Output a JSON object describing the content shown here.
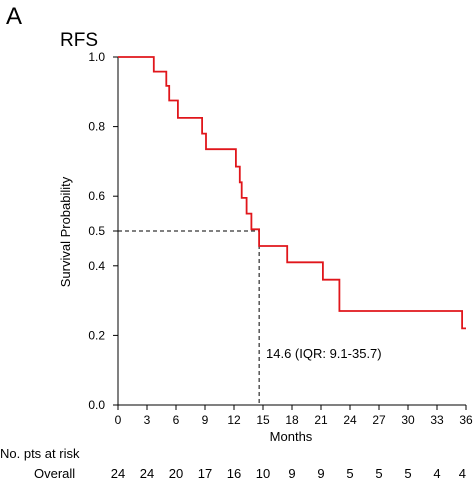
{
  "panel_label": "A",
  "chart_data": {
    "type": "line",
    "title": "RFS",
    "xlabel": "Months",
    "ylabel": "Survival Probability",
    "xlim": [
      0,
      36
    ],
    "ylim": [
      0,
      1
    ],
    "x_ticks": [
      0,
      3,
      6,
      9,
      12,
      15,
      18,
      21,
      24,
      27,
      30,
      33,
      36
    ],
    "y_ticks": [
      0.0,
      0.2,
      0.4,
      0.5,
      0.6,
      0.8,
      1.0
    ],
    "y_tick_labels": [
      "0.0",
      "0.2",
      "0.4",
      "0.5",
      "0.6",
      "0.8",
      "1.0"
    ],
    "grid": false,
    "series": [
      {
        "color": "#e0161b",
        "step": [
          [
            0,
            1.0
          ],
          [
            3.7,
            1.0
          ],
          [
            3.7,
            0.958
          ],
          [
            5.0,
            0.958
          ],
          [
            5.0,
            0.917
          ],
          [
            5.3,
            0.917
          ],
          [
            5.3,
            0.875
          ],
          [
            6.2,
            0.875
          ],
          [
            6.2,
            0.825
          ],
          [
            8.7,
            0.825
          ],
          [
            8.7,
            0.78
          ],
          [
            9.1,
            0.78
          ],
          [
            9.1,
            0.735
          ],
          [
            12.2,
            0.735
          ],
          [
            12.2,
            0.685
          ],
          [
            12.6,
            0.685
          ],
          [
            12.6,
            0.64
          ],
          [
            12.8,
            0.64
          ],
          [
            12.8,
            0.595
          ],
          [
            13.3,
            0.595
          ],
          [
            13.3,
            0.55
          ],
          [
            13.8,
            0.55
          ],
          [
            13.8,
            0.505
          ],
          [
            14.6,
            0.505
          ],
          [
            14.6,
            0.457
          ],
          [
            17.5,
            0.457
          ],
          [
            17.5,
            0.41
          ],
          [
            21.2,
            0.41
          ],
          [
            21.2,
            0.36
          ],
          [
            22.9,
            0.36
          ],
          [
            22.9,
            0.27
          ],
          [
            35.6,
            0.27
          ],
          [
            35.6,
            0.22
          ],
          [
            36,
            0.22
          ]
        ]
      }
    ],
    "median": {
      "x": 14.6,
      "y": 0.5,
      "label": "14.6  (IQR: 9.1-35.7)"
    },
    "risk_table": {
      "title": "No. pts at risk",
      "rows": [
        {
          "label": "Overall",
          "values": [
            "24",
            "24",
            "20",
            "17",
            "16",
            "10",
            "9",
            "9",
            "5",
            "5",
            "5",
            "4",
            "4"
          ]
        }
      ]
    }
  }
}
